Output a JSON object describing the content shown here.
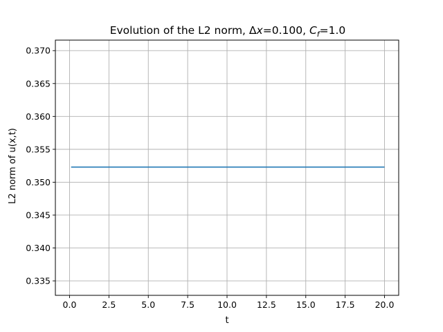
{
  "chart_data": {
    "type": "line",
    "title": "Evolution of the L2 norm, Δx=0.100, C_f=1.0",
    "title_parts": {
      "prefix": "Evolution of the L2 norm, ",
      "delta": "Δ",
      "x_var": "x",
      "dx_value": "=0.100, ",
      "c_var": "C",
      "c_sub": "f",
      "cf_value": "=1.0"
    },
    "xlabel": "t",
    "ylabel": "L2 norm of u(x,t)",
    "xlim": [
      -0.9,
      20.9
    ],
    "ylim": [
      0.3328,
      0.3716
    ],
    "x_ticks": [
      0.0,
      2.5,
      5.0,
      7.5,
      10.0,
      12.5,
      15.0,
      17.5,
      20.0
    ],
    "x_tick_labels": [
      "0.0",
      "2.5",
      "5.0",
      "7.5",
      "10.0",
      "12.5",
      "15.0",
      "17.5",
      "20.0"
    ],
    "y_ticks": [
      0.335,
      0.34,
      0.345,
      0.35,
      0.355,
      0.36,
      0.365,
      0.37
    ],
    "y_tick_labels": [
      "0.335",
      "0.340",
      "0.345",
      "0.350",
      "0.355",
      "0.360",
      "0.365",
      "0.370"
    ],
    "grid": true,
    "series": [
      {
        "color": "#1f77b4",
        "x": [
          0.1,
          20.0
        ],
        "y": [
          0.3523,
          0.3523
        ]
      }
    ]
  }
}
